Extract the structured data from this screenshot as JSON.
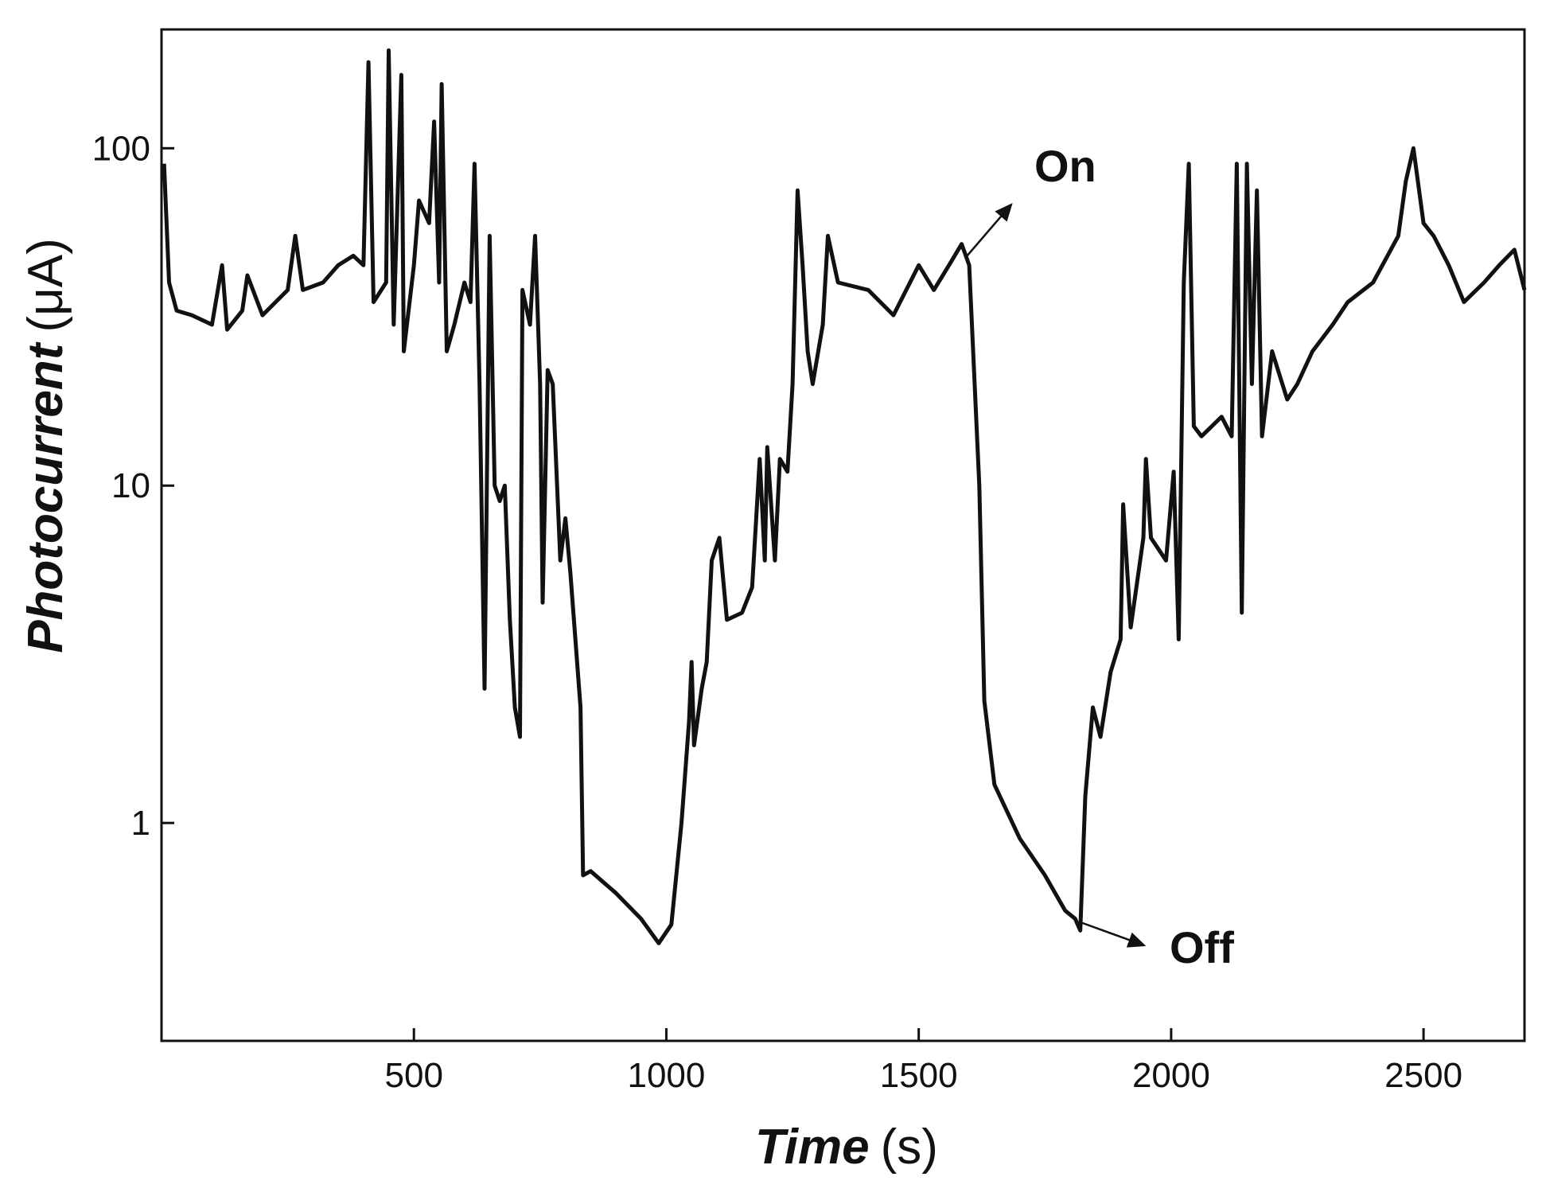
{
  "chart_data": {
    "type": "line",
    "xlabel": "Time",
    "xunit": "(s)",
    "ylabel": "Photocurrent",
    "yunit": "(μA)",
    "log_y": true,
    "color": "#111111",
    "xlim": [
      0,
      2700
    ],
    "xticks": [
      500,
      1000,
      1500,
      2000,
      2500
    ],
    "ylim": [
      0.226,
      225
    ],
    "yticks": [
      1,
      10,
      100
    ],
    "annotations": [
      "On",
      "Off"
    ],
    "x": [
      5,
      15,
      30,
      60,
      100,
      120,
      130,
      160,
      170,
      200,
      250,
      265,
      280,
      320,
      350,
      380,
      400,
      410,
      420,
      445,
      450,
      460,
      475,
      480,
      500,
      510,
      530,
      540,
      550,
      555,
      565,
      580,
      600,
      612,
      620,
      630,
      640,
      650,
      660,
      670,
      680,
      690,
      700,
      710,
      715,
      730,
      740,
      750,
      755,
      765,
      775,
      790,
      800,
      810,
      830,
      835,
      850,
      900,
      950,
      985,
      1010,
      1030,
      1045,
      1050,
      1055,
      1070,
      1080,
      1090,
      1105,
      1120,
      1150,
      1170,
      1185,
      1195,
      1200,
      1215,
      1225,
      1240,
      1250,
      1260,
      1270,
      1280,
      1290,
      1310,
      1320,
      1340,
      1400,
      1450,
      1500,
      1530,
      1560,
      1585,
      1600,
      1620,
      1630,
      1650,
      1700,
      1750,
      1790,
      1810,
      1820,
      1830,
      1845,
      1860,
      1880,
      1900,
      1905,
      1920,
      1945,
      1950,
      1960,
      1990,
      2005,
      2015,
      2025,
      2035,
      2045,
      2060,
      2100,
      2120,
      2130,
      2140,
      2150,
      2160,
      2170,
      2180,
      2200,
      2230,
      2250,
      2280,
      2320,
      2350,
      2400,
      2450,
      2465,
      2480,
      2500,
      2520,
      2550,
      2580,
      2620,
      2650,
      2680,
      2700
    ],
    "values": [
      90,
      40,
      33,
      32,
      30,
      45,
      29,
      33,
      42,
      32,
      38,
      55,
      38,
      40,
      45,
      48,
      45,
      180,
      35,
      40,
      195,
      30,
      165,
      25,
      45,
      70,
      60,
      120,
      40,
      155,
      25,
      30,
      40,
      35,
      90,
      20,
      2.5,
      55,
      10,
      9,
      10,
      4,
      2.2,
      1.8,
      38,
      30,
      55,
      20,
      4.5,
      22,
      20,
      6,
      8,
      5.5,
      2.2,
      0.7,
      0.72,
      0.62,
      0.52,
      0.44,
      0.5,
      1.0,
      2.0,
      3.0,
      1.7,
      2.5,
      3.0,
      6.0,
      7.0,
      4.0,
      4.2,
      5.0,
      12,
      6,
      13,
      6,
      12,
      11,
      20,
      75,
      45,
      25,
      20,
      30,
      55,
      40,
      38,
      32,
      45,
      38,
      45,
      52,
      45,
      10,
      2.3,
      1.3,
      0.9,
      0.7,
      0.55,
      0.52,
      0.48,
      1.2,
      2.2,
      1.8,
      2.8,
      3.5,
      8.8,
      3.8,
      7,
      12,
      7,
      6,
      11,
      3.5,
      40,
      90,
      15,
      14,
      16,
      14,
      90,
      4.2,
      90,
      20,
      75,
      14,
      25,
      18,
      20,
      25,
      30,
      35,
      40,
      55,
      80,
      100,
      60,
      55,
      45,
      35,
      40,
      45,
      50,
      38
    ]
  }
}
